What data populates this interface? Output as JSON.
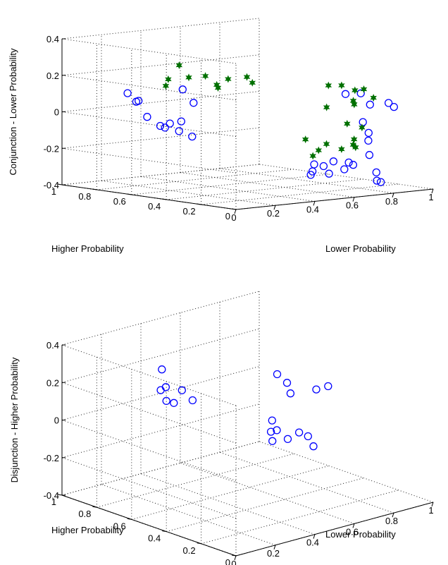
{
  "chart_data": [
    {
      "type": "scatter3d",
      "title": "",
      "xlabel": "Lower Probability",
      "ylabel": "Higher Probability",
      "zlabel": "Conjunction - Lower Probability",
      "xlim": [
        0,
        1
      ],
      "ylim": [
        0,
        1
      ],
      "zlim": [
        -0.4,
        0.4
      ],
      "x_ticks": [
        "0",
        "0.2",
        "0.4",
        "0.6",
        "0.8",
        "1"
      ],
      "y_ticks": [
        "0",
        "0.2",
        "0.4",
        "0.6",
        "0.8",
        "1"
      ],
      "z_ticks": [
        "-0.4",
        "-0.2",
        "0",
        "0.2",
        "0.4"
      ],
      "grid": true,
      "series": [
        {
          "marker": "circle",
          "color": "#0000ff",
          "points": [
            [
              0.2,
              0.85,
              0.1
            ],
            [
              0.3,
              0.9,
              0.04
            ],
            [
              0.2,
              0.8,
              0.06
            ],
            [
              0.22,
              0.76,
              -0.02
            ],
            [
              0.26,
              0.73,
              -0.07
            ],
            [
              0.3,
              0.72,
              -0.06
            ],
            [
              0.32,
              0.69,
              -0.1
            ],
            [
              0.24,
              0.68,
              -0.07
            ],
            [
              0.34,
              0.7,
              -0.05
            ],
            [
              0.42,
              0.72,
              0.04
            ],
            [
              0.4,
              0.76,
              0.11
            ],
            [
              0.36,
              0.66,
              -0.13
            ],
            [
              0.82,
              0.3,
              0.1
            ],
            [
              0.88,
              0.28,
              0.1
            ],
            [
              0.9,
              0.25,
              0.04
            ],
            [
              0.95,
              0.2,
              0.05
            ],
            [
              0.96,
              0.18,
              0.03
            ],
            [
              0.82,
              0.2,
              -0.04
            ],
            [
              0.84,
              0.19,
              -0.1
            ],
            [
              0.83,
              0.18,
              -0.14
            ],
            [
              0.8,
              0.14,
              -0.21
            ],
            [
              0.7,
              0.12,
              -0.25
            ],
            [
              0.66,
              0.1,
              -0.23
            ],
            [
              0.6,
              0.12,
              -0.22
            ],
            [
              0.55,
              0.12,
              -0.24
            ],
            [
              0.52,
              0.14,
              -0.23
            ],
            [
              0.52,
              0.15,
              -0.27
            ],
            [
              0.52,
              0.16,
              -0.29
            ],
            [
              0.56,
              0.1,
              -0.28
            ],
            [
              0.62,
              0.08,
              -0.26
            ],
            [
              0.8,
              0.1,
              -0.3
            ],
            [
              0.82,
              0.12,
              -0.35
            ],
            [
              0.84,
              0.12,
              -0.36
            ]
          ]
        },
        {
          "marker": "star",
          "color": "#007000",
          "points": [
            [
              0.35,
              0.8,
              0.13
            ],
            [
              0.38,
              0.82,
              0.16
            ],
            [
              0.4,
              0.78,
              0.24
            ],
            [
              0.44,
              0.77,
              0.17
            ],
            [
              0.48,
              0.72,
              0.18
            ],
            [
              0.52,
              0.7,
              0.13
            ],
            [
              0.56,
              0.68,
              0.16
            ],
            [
              0.5,
              0.67,
              0.12
            ],
            [
              0.62,
              0.64,
              0.17
            ],
            [
              0.63,
              0.62,
              0.14
            ],
            [
              0.76,
              0.33,
              0.15
            ],
            [
              0.8,
              0.3,
              0.15
            ],
            [
              0.85,
              0.28,
              0.12
            ],
            [
              0.86,
              0.24,
              0.13
            ],
            [
              0.9,
              0.23,
              0.08
            ],
            [
              0.82,
              0.25,
              0.05
            ],
            [
              0.78,
              0.21,
              0.08
            ],
            [
              0.68,
              0.25,
              0.05
            ],
            [
              0.74,
              0.2,
              -0.04
            ],
            [
              0.78,
              0.16,
              -0.06
            ],
            [
              0.74,
              0.16,
              -0.12
            ],
            [
              0.73,
              0.14,
              -0.16
            ],
            [
              0.7,
              0.12,
              -0.14
            ],
            [
              0.65,
              0.13,
              -0.16
            ],
            [
              0.6,
              0.16,
              -0.13
            ],
            [
              0.56,
              0.16,
              -0.16
            ],
            [
              0.54,
              0.17,
              -0.19
            ],
            [
              0.52,
              0.19,
              -0.1
            ]
          ]
        }
      ]
    },
    {
      "type": "scatter3d",
      "title": "",
      "xlabel": "Lower Probability",
      "ylabel": "Higher Probability",
      "zlabel": "Disjunction - Higher Probability",
      "xlim": [
        0,
        1
      ],
      "ylim": [
        0,
        1
      ],
      "zlim": [
        -0.4,
        0.4
      ],
      "x_ticks": [
        "0",
        "0.2",
        "0.4",
        "0.6",
        "0.8",
        "1"
      ],
      "y_ticks": [
        "0",
        "0.2",
        "0.4",
        "0.6",
        "0.8",
        "1"
      ],
      "z_ticks": [
        "-0.4",
        "-0.2",
        "0",
        "0.2",
        "0.4"
      ],
      "grid": true,
      "series": [
        {
          "marker": "circle",
          "color": "#0000ff",
          "points": [
            [
              0.35,
              0.8,
              0.14
            ],
            [
              0.33,
              0.8,
              0.24
            ],
            [
              0.37,
              0.73,
              0.14
            ],
            [
              0.3,
              0.74,
              0.1
            ],
            [
              0.32,
              0.72,
              0.09
            ],
            [
              0.28,
              0.75,
              0.16
            ],
            [
              0.38,
              0.68,
              0.1
            ],
            [
              0.65,
              0.5,
              0.22
            ],
            [
              0.7,
              0.5,
              0.16
            ],
            [
              0.7,
              0.48,
              0.11
            ],
            [
              0.76,
              0.4,
              0.14
            ],
            [
              0.82,
              0.4,
              0.14
            ],
            [
              0.58,
              0.45,
              0.01
            ],
            [
              0.56,
              0.4,
              -0.02
            ],
            [
              0.53,
              0.4,
              -0.02
            ],
            [
              0.52,
              0.38,
              -0.06
            ],
            [
              0.58,
              0.36,
              -0.06
            ],
            [
              0.62,
              0.34,
              -0.03
            ],
            [
              0.63,
              0.3,
              -0.04
            ],
            [
              0.64,
              0.28,
              -0.09
            ]
          ]
        }
      ]
    }
  ]
}
